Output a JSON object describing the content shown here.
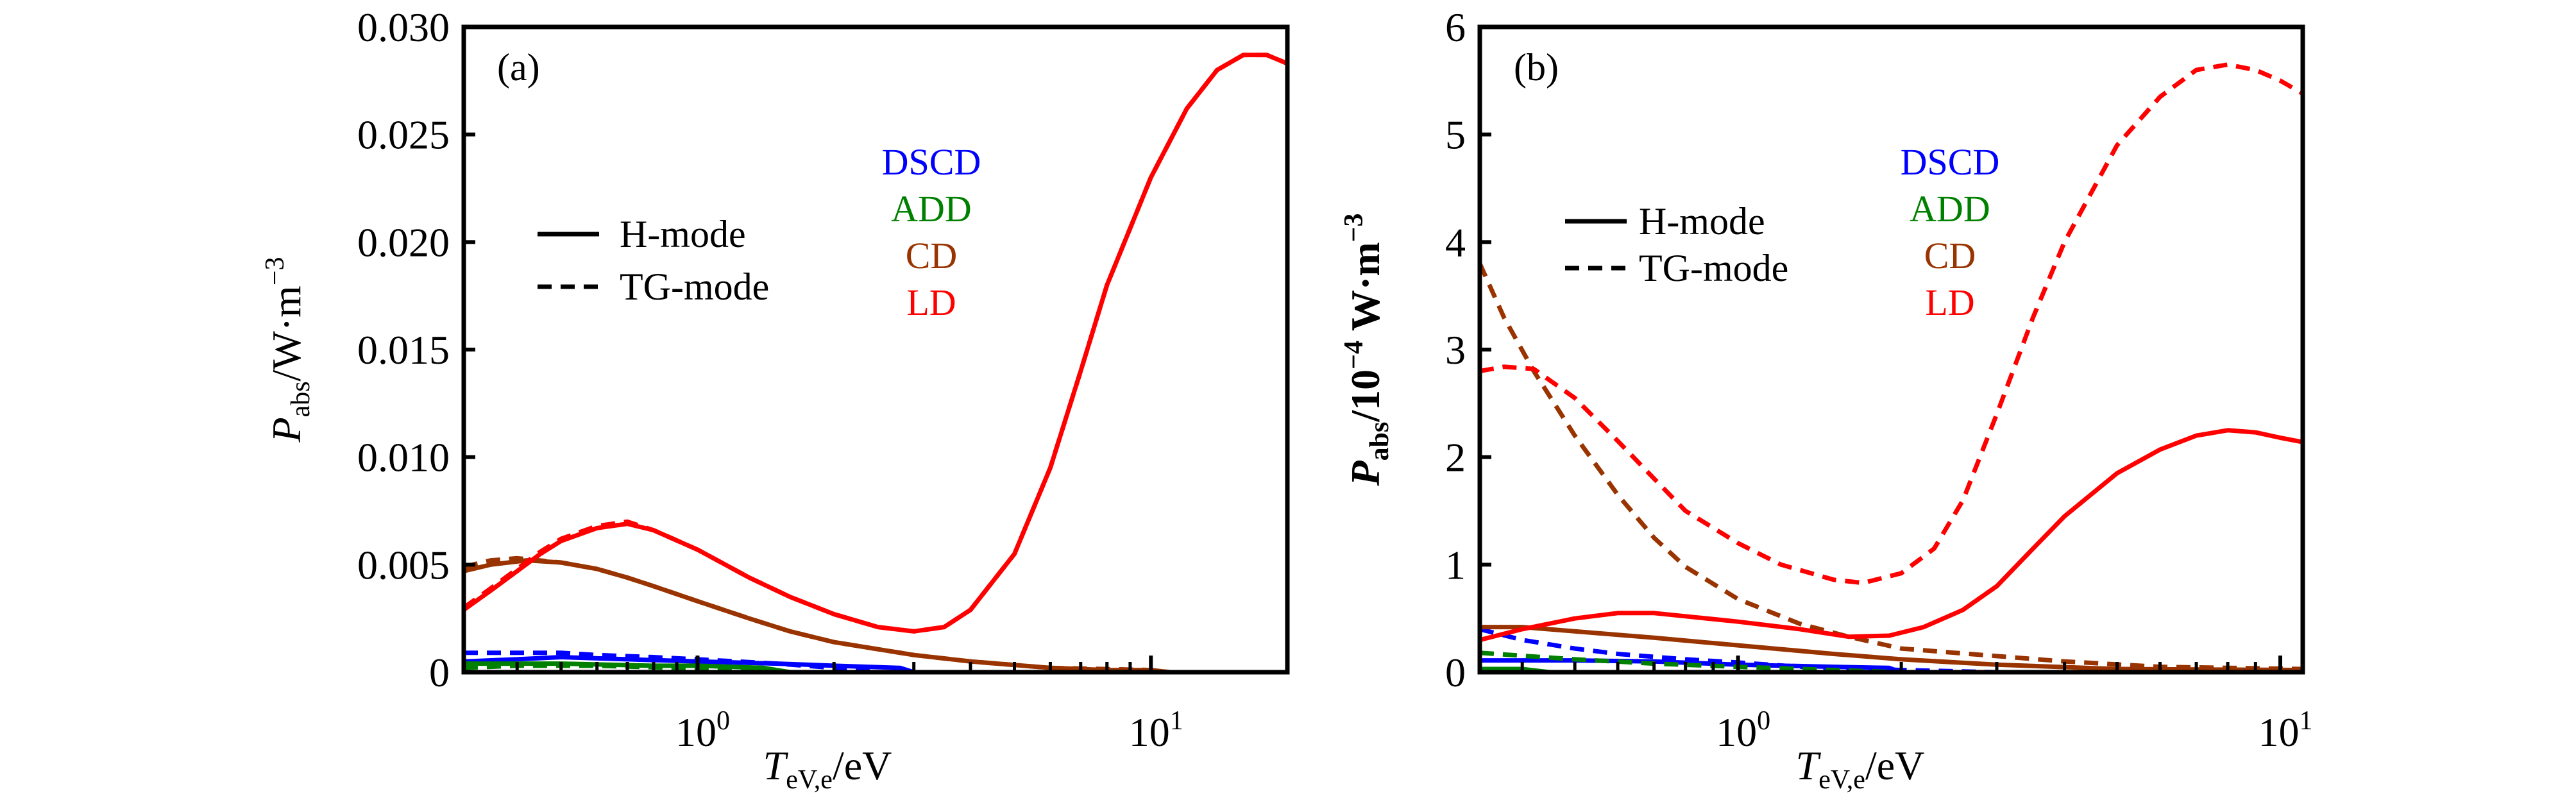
{
  "chart_data": [
    {
      "type": "line",
      "panel_label": "(a)",
      "xscale": "log",
      "xlim": [
        0.305,
        20
      ],
      "ylim": [
        0,
        0.03
      ],
      "xticks": [
        {
          "value": 1,
          "base": "10",
          "exp": "0"
        },
        {
          "value": 10,
          "base": "10",
          "exp": "1"
        }
      ],
      "yticks": [
        {
          "value": 0,
          "label": "0"
        },
        {
          "value": 0.005,
          "label": "0.005"
        },
        {
          "value": 0.01,
          "label": "0.010"
        },
        {
          "value": 0.015,
          "label": "0.015"
        },
        {
          "value": 0.02,
          "label": "0.020"
        },
        {
          "value": 0.025,
          "label": "0.025"
        },
        {
          "value": 0.03,
          "label": "0.030"
        }
      ],
      "xlabel": {
        "main": "T",
        "sub": "eV,e",
        "unit": "/eV"
      },
      "ylabel": {
        "main": "P",
        "sub": "abs",
        "unit": "/W·m",
        "sup": "−3",
        "bold": false
      },
      "legend": {
        "placement": "upper-left",
        "styles": [
          {
            "label": "H-mode",
            "dash": "solid"
          },
          {
            "label": "TG-mode",
            "dash": "dashed"
          }
        ],
        "colors": [
          {
            "label": "DSCD",
            "color": "#0000ff"
          },
          {
            "label": "ADD",
            "color": "#008000"
          },
          {
            "label": "CD",
            "color": "#993300"
          },
          {
            "label": "LD",
            "color": "#ff0000"
          }
        ]
      },
      "series": [
        {
          "name": "DSCD H-mode",
          "color": "#0000ff",
          "dash": "solid",
          "x": [
            0.305,
            0.4,
            0.5,
            0.7,
            1.0,
            1.5,
            2.0,
            2.8,
            3.0,
            20
          ],
          "y": [
            0.0005,
            0.0006,
            0.0007,
            0.0006,
            0.0005,
            0.0004,
            0.0003,
            0.0002,
            0.0,
            0.0
          ]
        },
        {
          "name": "DSCD TG-mode",
          "color": "#0000ff",
          "dash": "dashed",
          "x": [
            0.305,
            0.5,
            0.6,
            0.8,
            1.0,
            1.5,
            2.0,
            2.5,
            20
          ],
          "y": [
            0.0009,
            0.0009,
            0.0008,
            0.0007,
            0.0006,
            0.0004,
            0.0002,
            0.0,
            0.0
          ]
        },
        {
          "name": "ADD H-mode",
          "color": "#008000",
          "dash": "solid",
          "x": [
            0.305,
            0.5,
            0.8,
            1.0,
            1.4,
            1.6,
            20
          ],
          "y": [
            0.0004,
            0.0004,
            0.0003,
            0.0003,
            0.0002,
            0.0,
            0.0
          ]
        },
        {
          "name": "ADD TG-mode",
          "color": "#008000",
          "dash": "dashed",
          "x": [
            0.305,
            0.4,
            0.6,
            0.9,
            1.3,
            1.6,
            20
          ],
          "y": [
            0.0002,
            0.0003,
            0.0003,
            0.0002,
            0.0001,
            0.0,
            0.0
          ]
        },
        {
          "name": "CD H-mode",
          "color": "#993300",
          "dash": "solid",
          "x": [
            0.305,
            0.35,
            0.42,
            0.5,
            0.6,
            0.7,
            0.8,
            1.0,
            1.3,
            1.6,
            2.0,
            3.0,
            4.0,
            6.0,
            8.0,
            10.0,
            11.0,
            20
          ],
          "y": [
            0.0047,
            0.005,
            0.0052,
            0.0051,
            0.0048,
            0.0044,
            0.004,
            0.0033,
            0.0025,
            0.0019,
            0.0014,
            0.0008,
            0.0005,
            0.0002,
            0.0001,
            0.0001,
            0.0,
            0.0
          ]
        },
        {
          "name": "CD TG-mode",
          "color": "#993300",
          "dash": "dashed",
          "x": [
            0.305,
            0.35,
            0.4,
            0.5,
            0.6,
            0.7,
            0.8,
            1.0,
            1.3,
            1.6,
            2.0,
            3.0,
            4.0,
            6.0,
            10.0,
            11.0,
            20
          ],
          "y": [
            0.0049,
            0.0052,
            0.0053,
            0.0051,
            0.0048,
            0.0044,
            0.004,
            0.0033,
            0.0025,
            0.0019,
            0.0014,
            0.0008,
            0.0005,
            0.0002,
            0.0001,
            0.0,
            0.0
          ]
        },
        {
          "name": "LD H-mode",
          "color": "#ff0000",
          "dash": "solid",
          "x": [
            0.305,
            0.35,
            0.4,
            0.45,
            0.5,
            0.6,
            0.7,
            0.8,
            1.0,
            1.3,
            1.6,
            2.0,
            2.5,
            3.0,
            3.5,
            4.0,
            5.0,
            6.0,
            7.0,
            8.0,
            10.0,
            12.0,
            14.0,
            16.0,
            18.0,
            20.0
          ],
          "y": [
            0.0029,
            0.0038,
            0.0047,
            0.0055,
            0.0061,
            0.0067,
            0.0069,
            0.0066,
            0.0057,
            0.0044,
            0.0035,
            0.0027,
            0.0021,
            0.0019,
            0.0021,
            0.0029,
            0.0055,
            0.0095,
            0.014,
            0.018,
            0.023,
            0.0262,
            0.028,
            0.0287,
            0.0287,
            0.0283
          ]
        },
        {
          "name": "LD TG-mode",
          "color": "#ff0000",
          "dash": "dashed",
          "x": [
            0.305,
            0.35,
            0.4,
            0.45,
            0.5,
            0.6,
            0.7,
            0.8,
            1.0,
            1.3,
            1.6,
            2.0,
            2.5,
            3.0,
            3.5,
            4.0,
            5.0,
            6.0,
            7.0,
            8.0,
            10.0,
            12.0,
            14.0,
            16.0,
            18.0,
            20.0
          ],
          "y": [
            0.003,
            0.0039,
            0.0048,
            0.0056,
            0.0062,
            0.0068,
            0.007,
            0.0066,
            0.0057,
            0.0044,
            0.0035,
            0.0027,
            0.0021,
            0.0019,
            0.0021,
            0.0029,
            0.0055,
            0.0095,
            0.014,
            0.018,
            0.023,
            0.0262,
            0.028,
            0.0287,
            0.0287,
            0.0283
          ]
        }
      ]
    },
    {
      "type": "line",
      "panel_label": "(b)",
      "xscale": "log",
      "xlim": [
        0.334,
        11.0
      ],
      "ylim": [
        0,
        6
      ],
      "xticks": [
        {
          "value": 1,
          "base": "10",
          "exp": "0"
        },
        {
          "value": 10,
          "base": "10",
          "exp": "1"
        }
      ],
      "yticks": [
        {
          "value": 0,
          "label": "0"
        },
        {
          "value": 1,
          "label": "1"
        },
        {
          "value": 2,
          "label": "2"
        },
        {
          "value": 3,
          "label": "3"
        },
        {
          "value": 4,
          "label": "4"
        },
        {
          "value": 5,
          "label": "5"
        },
        {
          "value": 6,
          "label": "6"
        }
      ],
      "xlabel": {
        "main": "T",
        "sub": "eV,e",
        "unit": "/eV"
      },
      "ylabel": {
        "main": "P",
        "sub": "abs",
        "unit": "/10",
        "sup": "−4",
        "unit2": " W·m",
        "sup2": "−3",
        "bold": true
      },
      "legend": {
        "placement": "upper-left",
        "styles": [
          {
            "label": "H-mode",
            "dash": "solid"
          },
          {
            "label": "TG-mode",
            "dash": "dashed"
          }
        ],
        "colors": [
          {
            "label": "DSCD",
            "color": "#0000ff"
          },
          {
            "label": "ADD",
            "color": "#008000"
          },
          {
            "label": "CD",
            "color": "#993300"
          },
          {
            "label": "LD",
            "color": "#ff0000"
          }
        ]
      },
      "series": [
        {
          "name": "DSCD H-mode",
          "color": "#0000ff",
          "dash": "solid",
          "x": [
            0.334,
            0.5,
            0.7,
            1.0,
            1.5,
            1.9,
            2.0,
            11.0
          ],
          "y": [
            0.11,
            0.11,
            0.1,
            0.07,
            0.05,
            0.04,
            0.0,
            0.0
          ]
        },
        {
          "name": "DSCD TG-mode",
          "color": "#0000ff",
          "dash": "dashed",
          "x": [
            0.334,
            0.4,
            0.5,
            0.6,
            0.8,
            1.0,
            1.3,
            2.0,
            3.0,
            11.0
          ],
          "y": [
            0.4,
            0.3,
            0.22,
            0.17,
            0.12,
            0.09,
            0.05,
            0.02,
            0.0,
            0.0
          ]
        },
        {
          "name": "ADD H-mode",
          "color": "#008000",
          "dash": "solid",
          "x": [
            0.334,
            0.4,
            0.45,
            11.0
          ],
          "y": [
            0.03,
            0.03,
            0.0,
            0.0
          ]
        },
        {
          "name": "ADD TG-mode",
          "color": "#008000",
          "dash": "dashed",
          "x": [
            0.334,
            0.5,
            0.7,
            1.0,
            1.5,
            2.0,
            11.0
          ],
          "y": [
            0.18,
            0.12,
            0.08,
            0.05,
            0.02,
            0.0,
            0.0
          ]
        },
        {
          "name": "CD H-mode",
          "color": "#993300",
          "dash": "solid",
          "x": [
            0.334,
            0.4,
            0.5,
            0.7,
            1.0,
            1.5,
            2.0,
            3.0,
            5.0,
            11.0
          ],
          "y": [
            0.42,
            0.42,
            0.38,
            0.32,
            0.25,
            0.17,
            0.12,
            0.07,
            0.03,
            0.02
          ]
        },
        {
          "name": "CD TG-mode",
          "color": "#993300",
          "dash": "dashed",
          "x": [
            0.334,
            0.37,
            0.42,
            0.5,
            0.6,
            0.7,
            0.8,
            1.0,
            1.3,
            1.6,
            2.0,
            3.0,
            4.0,
            6.0,
            11.0
          ],
          "y": [
            3.8,
            3.3,
            2.8,
            2.2,
            1.65,
            1.25,
            0.98,
            0.68,
            0.45,
            0.33,
            0.22,
            0.15,
            0.1,
            0.05,
            0.03
          ]
        },
        {
          "name": "LD H-mode",
          "color": "#ff0000",
          "dash": "solid",
          "x": [
            0.334,
            0.4,
            0.5,
            0.6,
            0.7,
            0.8,
            1.0,
            1.3,
            1.6,
            1.9,
            2.2,
            2.6,
            3.0,
            3.5,
            4.0,
            5.0,
            6.0,
            7.0,
            8.0,
            9.0,
            10.0,
            11.0
          ],
          "y": [
            0.3,
            0.4,
            0.5,
            0.55,
            0.55,
            0.52,
            0.47,
            0.4,
            0.33,
            0.34,
            0.42,
            0.58,
            0.8,
            1.15,
            1.45,
            1.85,
            2.07,
            2.2,
            2.25,
            2.23,
            2.18,
            2.14
          ]
        },
        {
          "name": "LD TG-mode",
          "color": "#ff0000",
          "dash": "dashed",
          "x": [
            0.334,
            0.37,
            0.42,
            0.5,
            0.6,
            0.7,
            0.8,
            1.0,
            1.2,
            1.5,
            1.7,
            2.0,
            2.3,
            2.6,
            3.0,
            3.5,
            4.0,
            5.0,
            6.0,
            7.0,
            8.0,
            9.0,
            10.0,
            11.0
          ],
          "y": [
            2.8,
            2.84,
            2.82,
            2.55,
            2.15,
            1.8,
            1.5,
            1.2,
            1.0,
            0.86,
            0.83,
            0.92,
            1.15,
            1.6,
            2.4,
            3.3,
            4.0,
            4.9,
            5.35,
            5.6,
            5.65,
            5.6,
            5.5,
            5.38
          ]
        }
      ]
    }
  ]
}
